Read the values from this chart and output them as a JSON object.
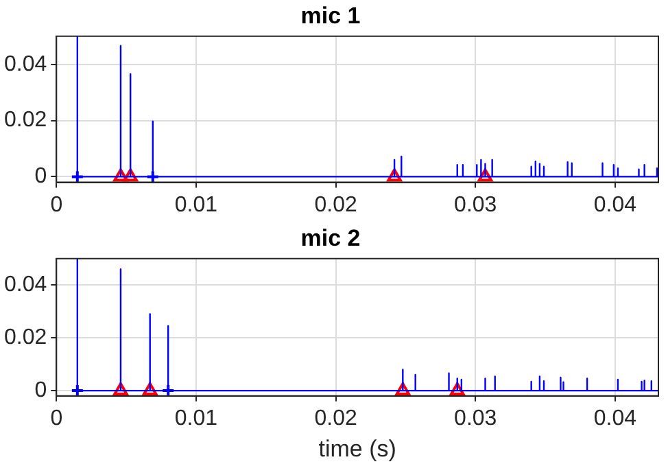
{
  "chart_data": [
    {
      "type": "line",
      "title": "mic 1",
      "xlim": [
        0,
        0.0431
      ],
      "xticks": [
        0,
        0.01,
        0.02,
        0.03,
        0.04
      ],
      "ylim": [
        -0.002,
        0.05
      ],
      "yticks": [
        0,
        0.02,
        0.04
      ],
      "grid": true,
      "legend": false,
      "series": [
        {
          "type": "line",
          "color": "#0000ff",
          "marker": "none",
          "line_style": "solid",
          "x": [
            0.0015,
            0.0015,
            0.0015,
            0.0046,
            0.0046,
            0.0046,
            0.0053,
            0.0053,
            0.0053,
            0.0069,
            0.0069,
            0.0069,
            0.0242,
            0.0242,
            0.0242,
            0.0247,
            0.0247,
            0.0247,
            0.0287,
            0.0287,
            0.0287,
            0.0291,
            0.0291,
            0.0291,
            0.0301,
            0.0301,
            0.0301,
            0.0304,
            0.0304,
            0.0304,
            0.0307,
            0.0307,
            0.0307,
            0.0312,
            0.0312,
            0.0312,
            0.034,
            0.034,
            0.034,
            0.0343,
            0.0343,
            0.0343,
            0.0346,
            0.0346,
            0.0346,
            0.0349,
            0.0349,
            0.0349,
            0.0366,
            0.0366,
            0.0366,
            0.0369,
            0.0369,
            0.0369,
            0.0391,
            0.0391,
            0.0391,
            0.0399,
            0.0399,
            0.0399,
            0.0402,
            0.0402,
            0.0402,
            0.0417,
            0.0417,
            0.0417,
            0.0421,
            0.0421,
            0.0421,
            0.043,
            0.043,
            0.043,
            0.0431
          ],
          "values": [
            0,
            0.05,
            0,
            0,
            0.0466,
            0,
            0,
            0.0366,
            0,
            0,
            0.0197,
            0,
            0,
            0.006,
            0,
            0,
            0.0072,
            0,
            0,
            0.0042,
            0,
            0,
            0.0042,
            0,
            0,
            0.0042,
            0,
            0,
            0.006,
            0,
            0,
            0.0046,
            0,
            0,
            0.006,
            0,
            0,
            0.0036,
            0,
            0,
            0.0054,
            0,
            0,
            0.0046,
            0,
            0,
            0.0036,
            0,
            0,
            0.0052,
            0,
            0,
            0.0048,
            0,
            0,
            0.0048,
            0,
            0,
            0.0042,
            0,
            0,
            0.003,
            0,
            0,
            0.0026,
            0,
            0,
            0.0042,
            0,
            0,
            0.003,
            0,
            0
          ]
        },
        {
          "type": "scatter",
          "color": "#ff0000",
          "marker": "triangle",
          "x": [
            0.0046,
            0.0053,
            0.0242,
            0.0307
          ],
          "values": [
            0,
            0,
            0,
            0
          ]
        },
        {
          "type": "scatter",
          "color": "#0000ff",
          "marker": "cross",
          "x": [
            0.0015,
            0.0069
          ],
          "values": [
            0,
            0
          ]
        }
      ]
    },
    {
      "type": "line",
      "title": "mic 2",
      "xlabel": "time (s)",
      "xlim": [
        0,
        0.0431
      ],
      "xticks": [
        0,
        0.01,
        0.02,
        0.03,
        0.04
      ],
      "ylim": [
        -0.002,
        0.05
      ],
      "yticks": [
        0,
        0.02,
        0.04
      ],
      "grid": true,
      "legend": false,
      "series": [
        {
          "type": "line",
          "color": "#0000ff",
          "marker": "none",
          "line_style": "solid",
          "x": [
            0.0015,
            0.0015,
            0.0015,
            0.0046,
            0.0046,
            0.0046,
            0.0067,
            0.0067,
            0.0067,
            0.008,
            0.008,
            0.008,
            0.0248,
            0.0248,
            0.0248,
            0.0257,
            0.0257,
            0.0257,
            0.0281,
            0.0281,
            0.0281,
            0.0287,
            0.0287,
            0.0287,
            0.029,
            0.029,
            0.029,
            0.0307,
            0.0307,
            0.0307,
            0.0314,
            0.0314,
            0.0314,
            0.034,
            0.034,
            0.034,
            0.0346,
            0.0346,
            0.0346,
            0.0349,
            0.0349,
            0.0349,
            0.0361,
            0.0361,
            0.0361,
            0.0363,
            0.0363,
            0.0363,
            0.038,
            0.038,
            0.038,
            0.0402,
            0.0402,
            0.0402,
            0.0419,
            0.0419,
            0.0419,
            0.0421,
            0.0421,
            0.0421,
            0.0426,
            0.0426,
            0.0426,
            0.0431
          ],
          "values": [
            0,
            0.05,
            0,
            0,
            0.046,
            0,
            0,
            0.029,
            0,
            0,
            0.0245,
            0,
            0,
            0.008,
            0,
            0,
            0.006,
            0,
            0,
            0.0066,
            0,
            0,
            0.0046,
            0,
            0,
            0.0042,
            0,
            0,
            0.0046,
            0,
            0,
            0.0054,
            0,
            0,
            0.0034,
            0,
            0,
            0.0054,
            0,
            0,
            0.0036,
            0,
            0,
            0.005,
            0,
            0,
            0.0032,
            0,
            0,
            0.0046,
            0,
            0,
            0.0042,
            0,
            0,
            0.0034,
            0,
            0,
            0.0038,
            0,
            0,
            0.0036,
            0,
            0
          ]
        },
        {
          "type": "scatter",
          "color": "#ff0000",
          "marker": "triangle",
          "x": [
            0.0046,
            0.0067,
            0.0248,
            0.0287
          ],
          "values": [
            0,
            0,
            0,
            0
          ]
        },
        {
          "type": "scatter",
          "color": "#0000ff",
          "marker": "cross",
          "x": [
            0.0015,
            0.008
          ],
          "values": [
            0,
            0
          ]
        }
      ]
    }
  ]
}
